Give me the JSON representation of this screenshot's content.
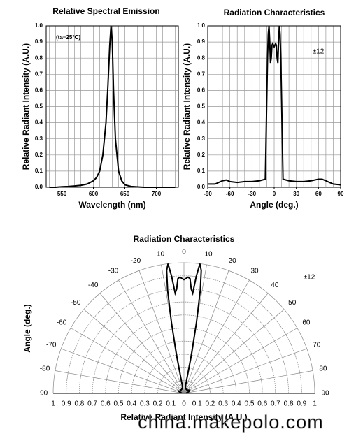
{
  "chart_data": [
    {
      "type": "line",
      "title": "Relative Spectral Emission",
      "xlabel": "Wavelength (nm)",
      "ylabel": "Relative Radiant Intensity (A.U.)",
      "annotation": "(ta=25°C)",
      "x": [
        530,
        540,
        550,
        560,
        570,
        580,
        590,
        600,
        605,
        610,
        615,
        620,
        623,
        626,
        628,
        630,
        632,
        635,
        640,
        645,
        650,
        660,
        680,
        700,
        730
      ],
      "values": [
        0,
        0,
        0.003,
        0.005,
        0.008,
        0.012,
        0.02,
        0.04,
        0.06,
        0.1,
        0.2,
        0.4,
        0.62,
        0.88,
        1.0,
        0.9,
        0.6,
        0.3,
        0.1,
        0.04,
        0.015,
        0.005,
        0,
        0,
        0
      ],
      "color": "#000000",
      "xlim": [
        525,
        735
      ],
      "xticks": [
        550,
        600,
        650,
        700
      ],
      "xgrid": [
        530,
        540,
        550,
        560,
        570,
        580,
        590,
        600,
        610,
        620,
        630,
        640,
        650,
        660,
        670,
        680,
        690,
        700,
        710,
        720,
        730
      ],
      "ylim": [
        0,
        1
      ],
      "yticks": [
        {
          "value": 0,
          "label": "0.0"
        },
        {
          "value": 0.1,
          "label": "0.1"
        },
        {
          "value": 0.2,
          "label": "0.2"
        },
        {
          "value": 0.3,
          "label": "0.3"
        },
        {
          "value": 0.4,
          "label": "0.4"
        },
        {
          "value": 0.5,
          "label": "0.5"
        },
        {
          "value": 0.6,
          "label": "0.6"
        },
        {
          "value": 0.7,
          "label": "0.7"
        },
        {
          "value": 0.8,
          "label": "0.8"
        },
        {
          "value": 0.9,
          "label": "0.9"
        },
        {
          "value": 1,
          "label": "1.0"
        }
      ],
      "grid": true
    },
    {
      "type": "line",
      "title": "Radiation Characteristics",
      "xlabel": "Angle (deg.)",
      "ylabel": "Relative Radiant Intensity (A.U.)",
      "annotation": "±12",
      "x": [
        -90,
        -80,
        -70,
        -65,
        -60,
        -50,
        -40,
        -30,
        -20,
        -12,
        -11,
        -10,
        -9,
        -8,
        -7,
        -6,
        -5,
        -4,
        -3,
        -2,
        0,
        2,
        3,
        4,
        5,
        6,
        7,
        8,
        9,
        10,
        11,
        12,
        20,
        30,
        40,
        50,
        60,
        65,
        70,
        80,
        90
      ],
      "values": [
        0.02,
        0.02,
        0.04,
        0.045,
        0.035,
        0.03,
        0.035,
        0.035,
        0.04,
        0.05,
        0.3,
        0.55,
        0.8,
        0.95,
        1.0,
        0.9,
        0.77,
        0.8,
        0.88,
        0.89,
        0.87,
        0.89,
        0.88,
        0.8,
        0.77,
        0.9,
        1.0,
        0.95,
        0.8,
        0.55,
        0.3,
        0.05,
        0.04,
        0.035,
        0.035,
        0.04,
        0.05,
        0.05,
        0.04,
        0.02,
        0.015
      ],
      "color": "#000000",
      "xlim": [
        -90,
        90
      ],
      "xticks": [
        -90,
        -60,
        -30,
        0,
        30,
        60,
        90
      ],
      "xgrid": [
        -90,
        -80,
        -70,
        -60,
        -50,
        -40,
        -30,
        -20,
        -10,
        0,
        10,
        20,
        30,
        40,
        50,
        60,
        70,
        80,
        90
      ],
      "ylim": [
        0,
        1
      ],
      "yticks": [
        {
          "value": 0,
          "label": "0.0"
        },
        {
          "value": 0.1,
          "label": "0.1"
        },
        {
          "value": 0.2,
          "label": "0.2"
        },
        {
          "value": 0.3,
          "label": "0.3"
        },
        {
          "value": 0.4,
          "label": "0.4"
        },
        {
          "value": 0.5,
          "label": "0.5"
        },
        {
          "value": 0.6,
          "label": "0.6"
        },
        {
          "value": 0.7,
          "label": "0.7"
        },
        {
          "value": 0.8,
          "label": "0.8"
        },
        {
          "value": 0.9,
          "label": "0.9"
        },
        {
          "value": 1,
          "label": "1.0"
        }
      ],
      "grid": true
    },
    {
      "type": "polar",
      "title": "Radiation Characteristics",
      "xlabel": "Relative Radiant Intensity (A.U.)",
      "ylabel": "Angle (deg.)",
      "annotation": "±12",
      "x": [
        -90,
        -80,
        -70,
        -65,
        -60,
        -50,
        -40,
        -30,
        -20,
        -12,
        -11,
        -10,
        -9,
        -8,
        -7,
        -6,
        -5,
        -4,
        -3,
        -2,
        0,
        2,
        3,
        4,
        5,
        6,
        7,
        8,
        9,
        10,
        11,
        12,
        20,
        30,
        40,
        50,
        60,
        65,
        70,
        80,
        90
      ],
      "values": [
        0.02,
        0.02,
        0.04,
        0.045,
        0.035,
        0.03,
        0.035,
        0.035,
        0.04,
        0.05,
        0.3,
        0.55,
        0.8,
        0.95,
        1.0,
        0.9,
        0.77,
        0.8,
        0.88,
        0.89,
        0.87,
        0.89,
        0.88,
        0.8,
        0.77,
        0.9,
        1.0,
        0.95,
        0.8,
        0.55,
        0.3,
        0.05,
        0.04,
        0.035,
        0.035,
        0.04,
        0.05,
        0.05,
        0.04,
        0.02,
        0.015
      ],
      "color": "#000000",
      "angleticks": [
        -90,
        -80,
        -70,
        -60,
        -50,
        -40,
        -30,
        -20,
        -10,
        0,
        10,
        20,
        30,
        40,
        50,
        60,
        70,
        80,
        90
      ],
      "rlim": [
        0,
        1
      ],
      "rticks": [
        0,
        0.1,
        0.2,
        0.3,
        0.4,
        0.5,
        0.6,
        0.7,
        0.8,
        0.9,
        1
      ],
      "grid": true
    }
  ],
  "watermark": "china.makepolo.com"
}
